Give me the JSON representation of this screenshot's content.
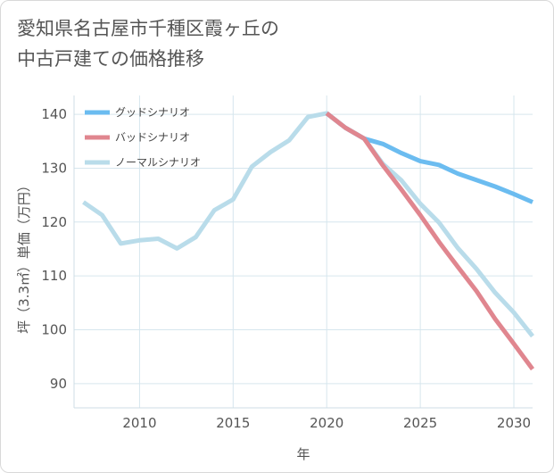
{
  "title": {
    "line1": "愛知県名古屋市千種区霞ヶ丘の",
    "line2": "中古戸建ての価格推移"
  },
  "chart_data": {
    "type": "line",
    "xlabel": "年",
    "ylabel": "坪（3.3㎡）単価（万円）",
    "xlim": [
      2006.5,
      2031
    ],
    "ylim": [
      85.5,
      143.5
    ],
    "x_ticks": [
      2010,
      2015,
      2020,
      2025,
      2030
    ],
    "y_ticks": [
      90,
      100,
      110,
      120,
      130,
      140
    ],
    "grid": true,
    "legend_position": "top-left",
    "series": [
      {
        "name": "グッドシナリオ",
        "color": "#6bbcf0",
        "x": [
          2020,
          2021,
          2022,
          2023,
          2024,
          2025,
          2026,
          2027,
          2028,
          2029,
          2030,
          2031
        ],
        "values": [
          140.2,
          137.5,
          135.5,
          134.5,
          132.8,
          131.3,
          130.6,
          129.0,
          127.8,
          126.6,
          125.2,
          123.7
        ]
      },
      {
        "name": "バッドシナリオ",
        "color": "#e0868f",
        "x": [
          2020,
          2021,
          2022,
          2023,
          2024,
          2025,
          2026,
          2027,
          2028,
          2029,
          2030,
          2031
        ],
        "values": [
          140.2,
          137.5,
          135.5,
          130.5,
          126.0,
          121.3,
          116.3,
          111.7,
          107.2,
          102.0,
          97.4,
          92.7
        ]
      },
      {
        "name": "ノーマルシナリオ",
        "color": "#b9dcea",
        "x": [
          2007,
          2008,
          2009,
          2010,
          2011,
          2012,
          2013,
          2014,
          2015,
          2016,
          2017,
          2018,
          2019,
          2020,
          2021,
          2022,
          2023,
          2024,
          2025,
          2026,
          2027,
          2028,
          2029,
          2030,
          2031
        ],
        "values": [
          123.7,
          121.3,
          116.0,
          116.6,
          116.9,
          115.1,
          117.2,
          122.2,
          124.2,
          130.3,
          133.0,
          135.2,
          139.5,
          140.2,
          137.5,
          135.5,
          130.8,
          127.7,
          123.4,
          119.9,
          115.2,
          111.3,
          106.9,
          103.2,
          98.8
        ]
      }
    ]
  }
}
